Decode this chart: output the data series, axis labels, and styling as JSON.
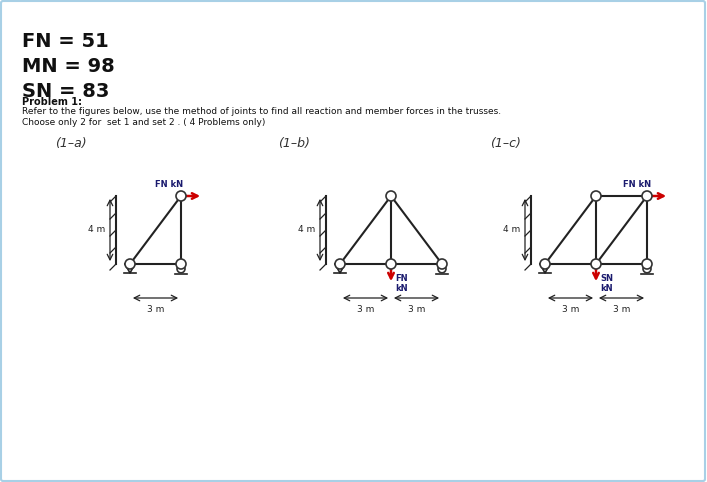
{
  "FN": 51,
  "MN": 98,
  "SN": 83,
  "title_lines": [
    "FN = 51",
    "MN = 98",
    "SN = 83"
  ],
  "problem_bold": "Problem 1:",
  "problem_text1": "Refer to the figures below, use the method of joints to find all reaction and member forces in the trusses.",
  "problem_text2": "Choose only 2 for  set 1 and set 2 . ( 4 Problems only)",
  "labels_1a": "(1–a)",
  "labels_1b": "(1–b)",
  "labels_1c": "(1–c)",
  "bg_color": "#ffffff",
  "border_color": "#a8d0e6",
  "node_color": "#ffffff",
  "node_edge": "#333333",
  "member_color": "#222222",
  "arrow_color": "#cc0000",
  "label_color": "#1a1a6e",
  "dim_color": "#222222"
}
